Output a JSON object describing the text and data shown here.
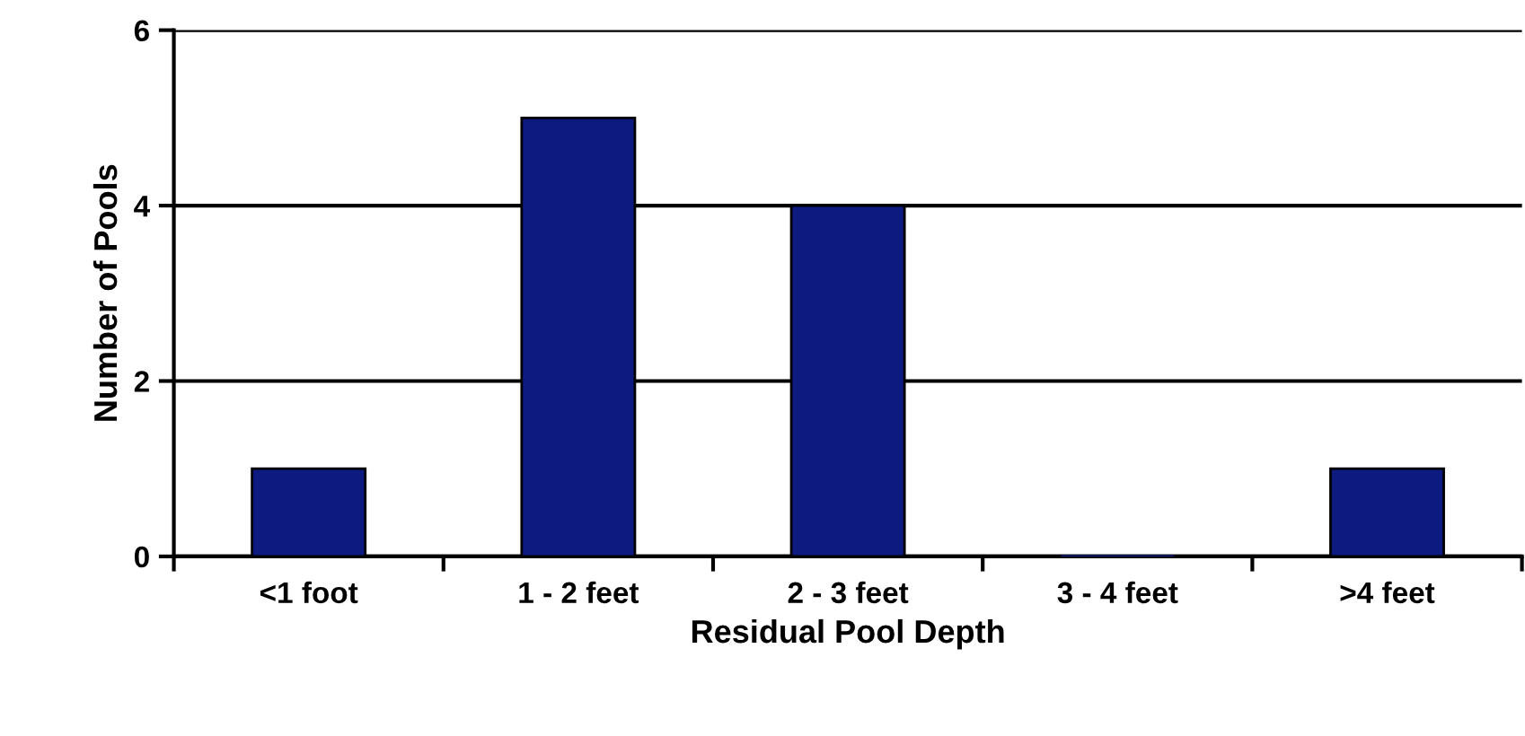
{
  "chart_data": {
    "type": "bar",
    "categories": [
      "<1 foot",
      "1 - 2 feet",
      "2 - 3 feet",
      "3 - 4 feet",
      ">4 feet"
    ],
    "values": [
      1,
      5,
      4,
      0,
      1
    ],
    "color": "#0d1a7f",
    "xlabel": "Residual Pool Depth",
    "ylabel": "Number of Pools",
    "ylim": [
      0,
      6
    ],
    "yticks": [
      0,
      2,
      4,
      6
    ],
    "grid": "y",
    "legend": false
  }
}
